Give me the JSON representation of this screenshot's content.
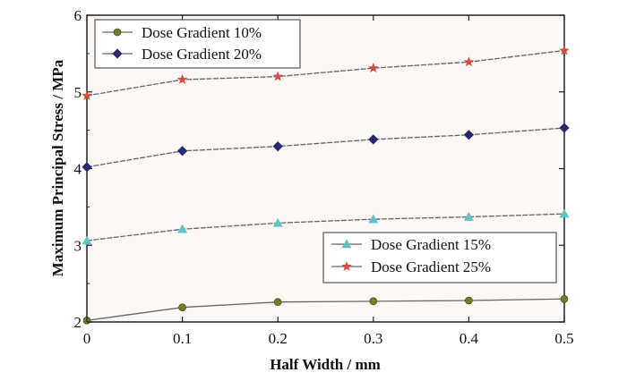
{
  "chart_data": {
    "type": "line",
    "title": "",
    "xlabel": "Half Width / mm",
    "ylabel": "Maximum Principal Stress / MPa",
    "xlim": [
      0,
      0.5
    ],
    "ylim": [
      2,
      6
    ],
    "x_ticks": [
      "0",
      "0.1",
      "0.2",
      "0.3",
      "0.4",
      "0.5"
    ],
    "y_ticks": [
      "2",
      "3",
      "4",
      "5",
      "6"
    ],
    "grid": false,
    "x": [
      0,
      0.1,
      0.2,
      0.3,
      0.4,
      0.5
    ],
    "series": [
      {
        "name": "Dose Gradient 10%",
        "values": [
          2.02,
          2.19,
          2.26,
          2.27,
          2.28,
          2.3
        ],
        "color": "#7a7a1e",
        "marker": "circle",
        "legend": "upper-left"
      },
      {
        "name": "Dose Gradient 20%",
        "values": [
          4.02,
          4.23,
          4.29,
          4.38,
          4.44,
          4.53
        ],
        "color": "#26287a",
        "marker": "diamond",
        "legend": "upper-left"
      },
      {
        "name": "Dose Gradient 15%",
        "values": [
          3.06,
          3.21,
          3.29,
          3.34,
          3.37,
          3.41
        ],
        "color": "#5fc4c4",
        "marker": "triangle",
        "legend": "lower-right"
      },
      {
        "name": "Dose Gradient 25%",
        "values": [
          4.95,
          5.16,
          5.2,
          5.31,
          5.39,
          5.54
        ],
        "color": "#d94a3a",
        "marker": "star",
        "legend": "lower-right"
      }
    ],
    "line_color": "#666666",
    "legend_placement": [
      "upper-left",
      "lower-right"
    ]
  }
}
